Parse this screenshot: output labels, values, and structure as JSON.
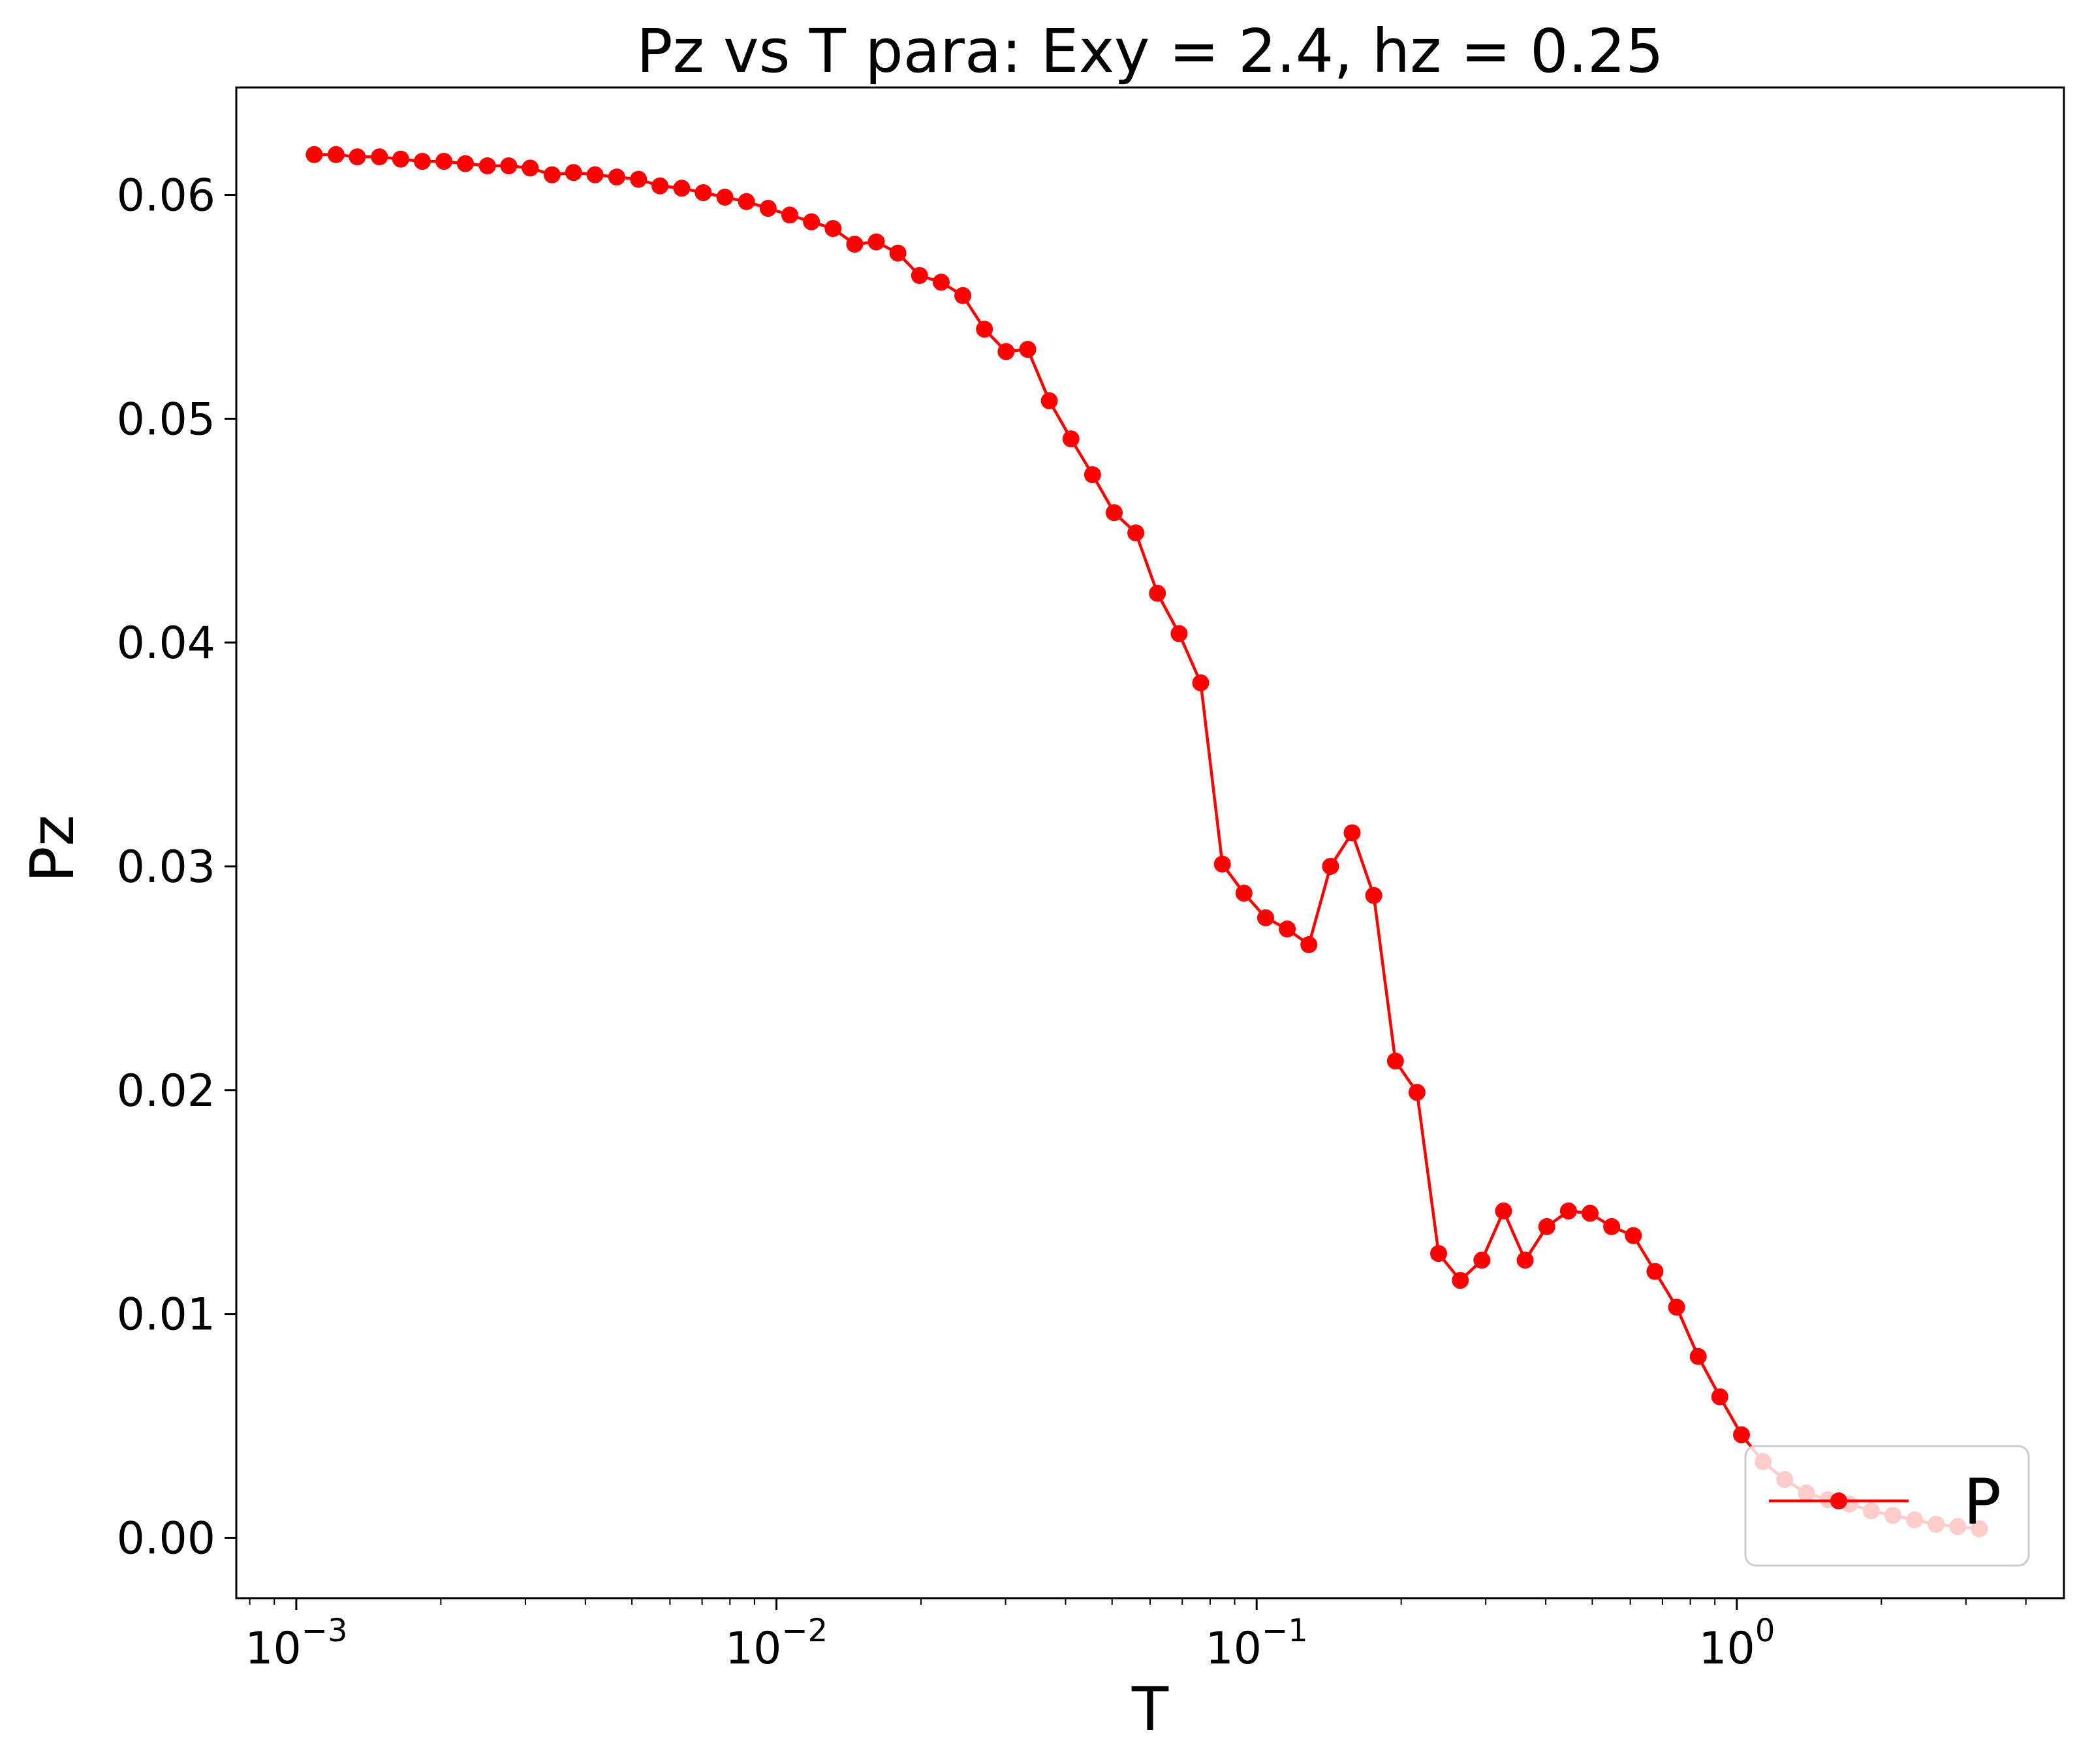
{
  "chart_data": {
    "type": "line",
    "title": "Pz vs T para: Exy = 2.4, hz = 0.25",
    "xlabel": "T",
    "ylabel": "Pz",
    "x_scale": "log",
    "xlim": [
      0.00075,
      4.8
    ],
    "ylim": [
      -0.0027,
      0.0648
    ],
    "x_ticks": [
      {
        "value": 0.001,
        "base": "10",
        "exp": "−3"
      },
      {
        "value": 0.01,
        "base": "10",
        "exp": "−2"
      },
      {
        "value": 0.1,
        "base": "10",
        "exp": "−1"
      },
      {
        "value": 1,
        "base": "10",
        "exp": "0"
      }
    ],
    "y_ticks": [
      {
        "value": 0.0,
        "label": "0.00"
      },
      {
        "value": 0.01,
        "label": "0.01"
      },
      {
        "value": 0.02,
        "label": "0.02"
      },
      {
        "value": 0.03,
        "label": "0.03"
      },
      {
        "value": 0.04,
        "label": "0.04"
      },
      {
        "value": 0.05,
        "label": "0.05"
      },
      {
        "value": 0.06,
        "label": "0.06"
      }
    ],
    "grid": false,
    "legend": {
      "position": "lower right",
      "entries": [
        "P"
      ]
    },
    "series": [
      {
        "name": "P",
        "color": "#ff0000",
        "marker": "circle",
        "points": [
          [
            0.00109,
            0.0618
          ],
          [
            0.00121,
            0.0618
          ],
          [
            0.00134,
            0.0617
          ],
          [
            0.00149,
            0.0617
          ],
          [
            0.00165,
            0.0616
          ],
          [
            0.00183,
            0.0615
          ],
          [
            0.00203,
            0.0615
          ],
          [
            0.00225,
            0.0614
          ],
          [
            0.0025,
            0.0613
          ],
          [
            0.00277,
            0.0613
          ],
          [
            0.00307,
            0.0612
          ],
          [
            0.00341,
            0.0609
          ],
          [
            0.00378,
            0.061
          ],
          [
            0.00419,
            0.0609
          ],
          [
            0.00465,
            0.0608
          ],
          [
            0.00516,
            0.0607
          ],
          [
            0.00572,
            0.0604
          ],
          [
            0.00635,
            0.0603
          ],
          [
            0.00704,
            0.0601
          ],
          [
            0.00781,
            0.0599
          ],
          [
            0.00866,
            0.0597
          ],
          [
            0.00961,
            0.0594
          ],
          [
            0.01066,
            0.0591
          ],
          [
            0.01183,
            0.0588
          ],
          [
            0.01312,
            0.0585
          ],
          [
            0.01455,
            0.0578
          ],
          [
            0.01614,
            0.0579
          ],
          [
            0.0179,
            0.0574
          ],
          [
            0.01986,
            0.0564
          ],
          [
            0.02203,
            0.0561
          ],
          [
            0.02444,
            0.0555
          ],
          [
            0.02711,
            0.054
          ],
          [
            0.03007,
            0.053
          ],
          [
            0.03336,
            0.0531
          ],
          [
            0.037,
            0.0508
          ],
          [
            0.04105,
            0.0491
          ],
          [
            0.04553,
            0.0475
          ],
          [
            0.05051,
            0.0458
          ],
          [
            0.05603,
            0.0449
          ],
          [
            0.06215,
            0.0422
          ],
          [
            0.06894,
            0.0404
          ],
          [
            0.07648,
            0.0382
          ],
          [
            0.08484,
            0.0301
          ],
          [
            0.09411,
            0.0288
          ],
          [
            0.1044,
            0.0277
          ],
          [
            0.11581,
            0.0272
          ],
          [
            0.12846,
            0.0265
          ],
          [
            0.1425,
            0.03
          ],
          [
            0.15808,
            0.0315
          ],
          [
            0.17535,
            0.0287
          ],
          [
            0.19452,
            0.0213
          ],
          [
            0.21578,
            0.0199
          ],
          [
            0.23936,
            0.0127
          ],
          [
            0.26552,
            0.0115
          ],
          [
            0.29454,
            0.0124
          ],
          [
            0.32673,
            0.0146
          ],
          [
            0.36244,
            0.0124
          ],
          [
            0.40205,
            0.0139
          ],
          [
            0.44599,
            0.0146
          ],
          [
            0.49473,
            0.0145
          ],
          [
            0.5488,
            0.0139
          ],
          [
            0.60878,
            0.0135
          ],
          [
            0.67531,
            0.0119
          ],
          [
            0.74912,
            0.0103
          ],
          [
            0.83099,
            0.0081
          ],
          [
            0.92181,
            0.0063
          ],
          [
            1.02255,
            0.0046
          ],
          [
            1.1343,
            0.0034
          ],
          [
            1.25827,
            0.0026
          ],
          [
            1.39578,
            0.002
          ],
          [
            1.54833,
            0.0017
          ],
          [
            1.71754,
            0.0015
          ],
          [
            1.90525,
            0.0012
          ],
          [
            2.11347,
            0.001
          ],
          [
            2.34445,
            0.0008
          ],
          [
            2.60067,
            0.0006
          ],
          [
            2.88489,
            0.0005
          ],
          [
            3.20017,
            0.0004
          ]
        ]
      }
    ]
  }
}
